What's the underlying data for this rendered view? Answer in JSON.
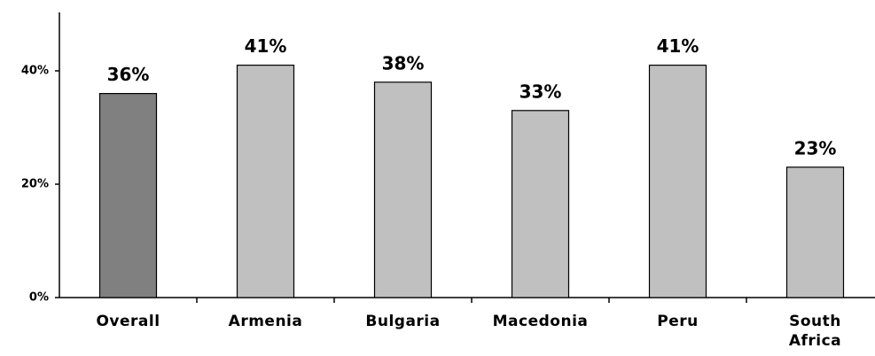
{
  "chart_data": {
    "type": "bar",
    "categories": [
      "Overall",
      "Armenia",
      "Bulgaria",
      "Macedonia",
      "Peru",
      "South Africa"
    ],
    "values": [
      36,
      41,
      38,
      33,
      41,
      23
    ],
    "value_labels": [
      "36%",
      "41%",
      "38%",
      "33%",
      "41%",
      "23%"
    ],
    "colors": [
      "#808080",
      "#c0c0c0",
      "#c0c0c0",
      "#c0c0c0",
      "#c0c0c0",
      "#c0c0c0"
    ],
    "ylim": [
      0,
      50
    ],
    "yticks": [
      {
        "value": 0,
        "label": "0%"
      },
      {
        "value": 20,
        "label": "20%"
      },
      {
        "value": 40,
        "label": "40%"
      }
    ],
    "grid": false
  }
}
